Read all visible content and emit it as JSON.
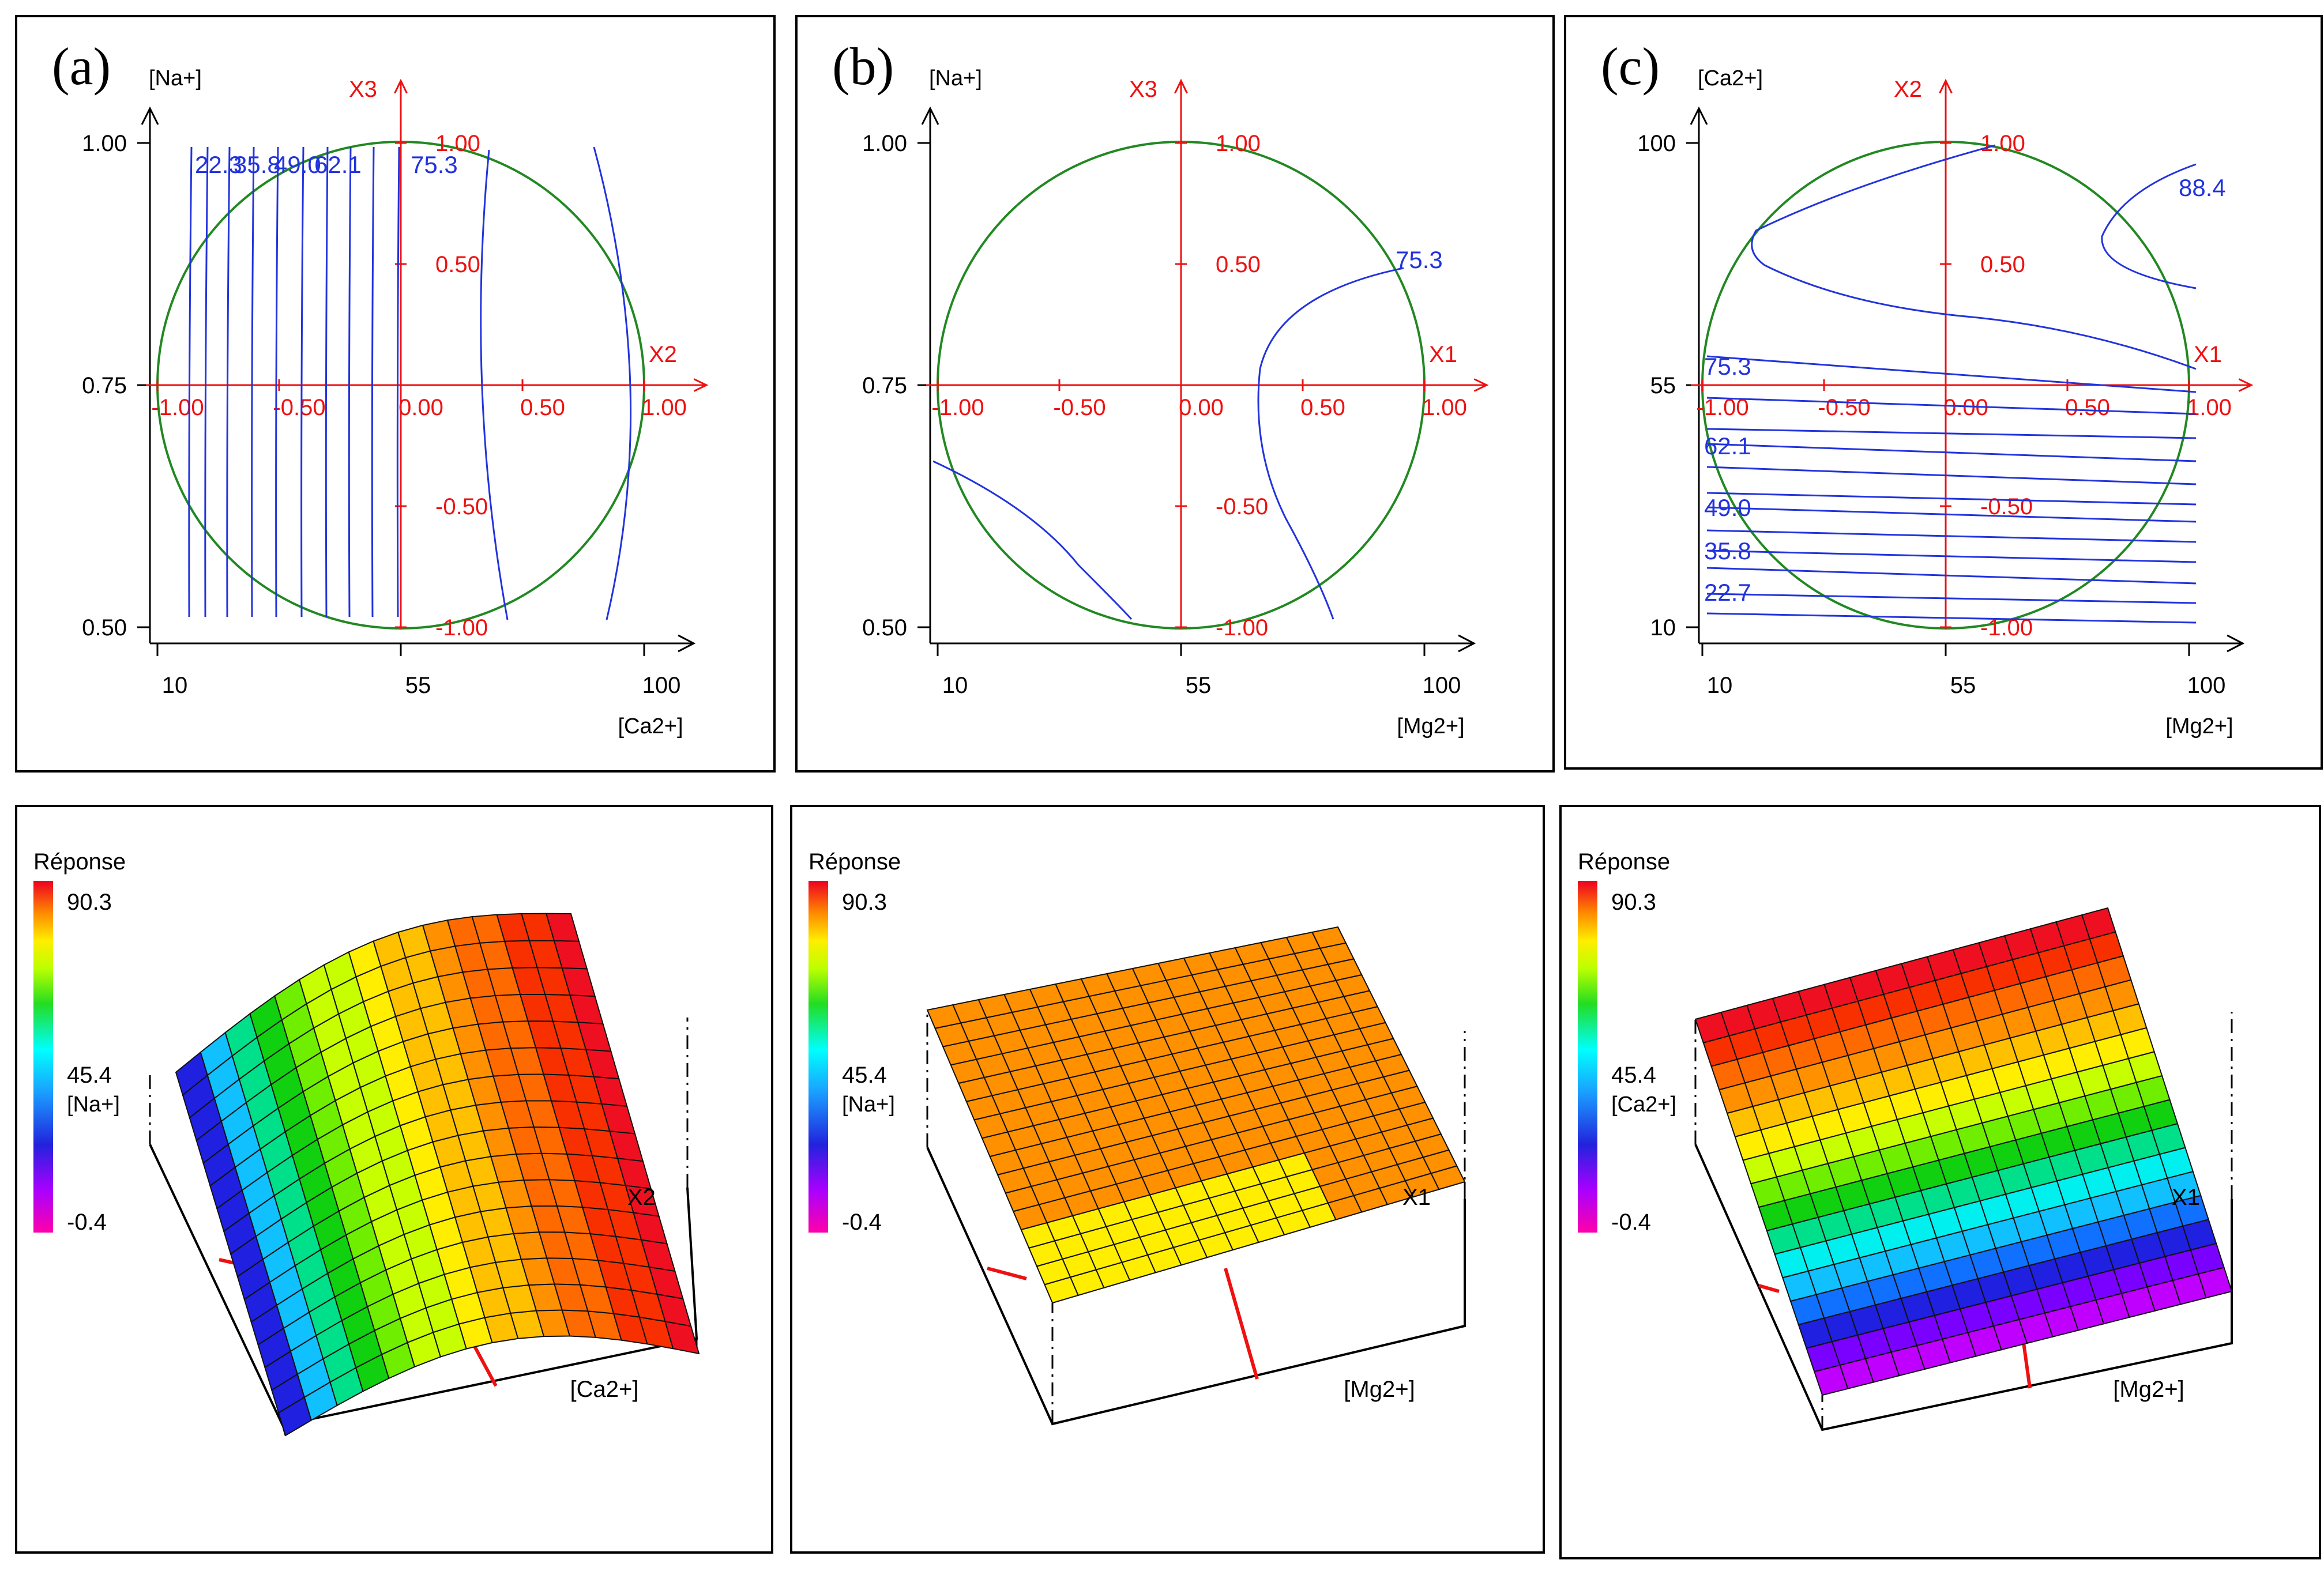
{
  "colorbar": {
    "title": "Réponse",
    "max_label": "90.3",
    "mid_label": "45.4",
    "min_label": "-0.4"
  },
  "chart_data": [
    {
      "type": "contour",
      "panel_label": "(a)",
      "y_name": "[Na+]",
      "x_name": "[Ca2+]",
      "y_coded_name": "X3",
      "x_coded_name": "X2",
      "y_ticks": [
        "1.00",
        "0.75",
        "0.50"
      ],
      "x_ticks": [
        "10",
        "55",
        "100"
      ],
      "coded_ticks_x": [
        "-1.00",
        "-0.50",
        "0.00",
        "0.50",
        "1.00"
      ],
      "coded_ticks_y": [
        "1.00",
        "0.50",
        "-0.50",
        "-1.00"
      ],
      "contour_labels": [
        "22.3",
        "35.8",
        "49.0",
        "62.1",
        "75.3"
      ]
    },
    {
      "type": "contour",
      "panel_label": "(b)",
      "y_name": "[Na+]",
      "x_name": "[Mg2+]",
      "y_coded_name": "X3",
      "x_coded_name": "X1",
      "y_ticks": [
        "1.00",
        "0.75",
        "0.50"
      ],
      "x_ticks": [
        "10",
        "55",
        "100"
      ],
      "coded_ticks_x": [
        "-1.00",
        "-0.50",
        "0.00",
        "0.50",
        "1.00"
      ],
      "coded_ticks_y": [
        "1.00",
        "0.50",
        "-0.50",
        "-1.00"
      ],
      "contour_labels": [
        "75.3"
      ]
    },
    {
      "type": "contour",
      "panel_label": "(c)",
      "y_name": "[Ca2+]",
      "x_name": "[Mg2+]",
      "y_coded_name": "X2",
      "x_coded_name": "X1",
      "y_ticks": [
        "100",
        "55",
        "10"
      ],
      "x_ticks": [
        "10",
        "55",
        "100"
      ],
      "coded_ticks_x": [
        "-1.00",
        "-0.50",
        "0.00",
        "0.50",
        "1.00"
      ],
      "coded_ticks_y": [
        "1.00",
        "0.50",
        "-0.50",
        "-1.00"
      ],
      "contour_labels": [
        "88.4",
        "75.3",
        "62.1",
        "49.0",
        "35.8",
        "22.7"
      ]
    },
    {
      "type": "surface",
      "y_name": "[Na+]",
      "x_name": "[Ca2+]",
      "x_coded_name": "X2",
      "z_range": [
        -0.4,
        90.3
      ]
    },
    {
      "type": "surface",
      "y_name": "[Na+]",
      "x_name": "[Mg2+]",
      "x_coded_name": "X1",
      "z_range": [
        -0.4,
        90.3
      ]
    },
    {
      "type": "surface",
      "y_name": "[Ca2+]",
      "x_name": "[Mg2+]",
      "x_coded_name": "X1",
      "z_range": [
        -0.4,
        90.3
      ]
    }
  ]
}
